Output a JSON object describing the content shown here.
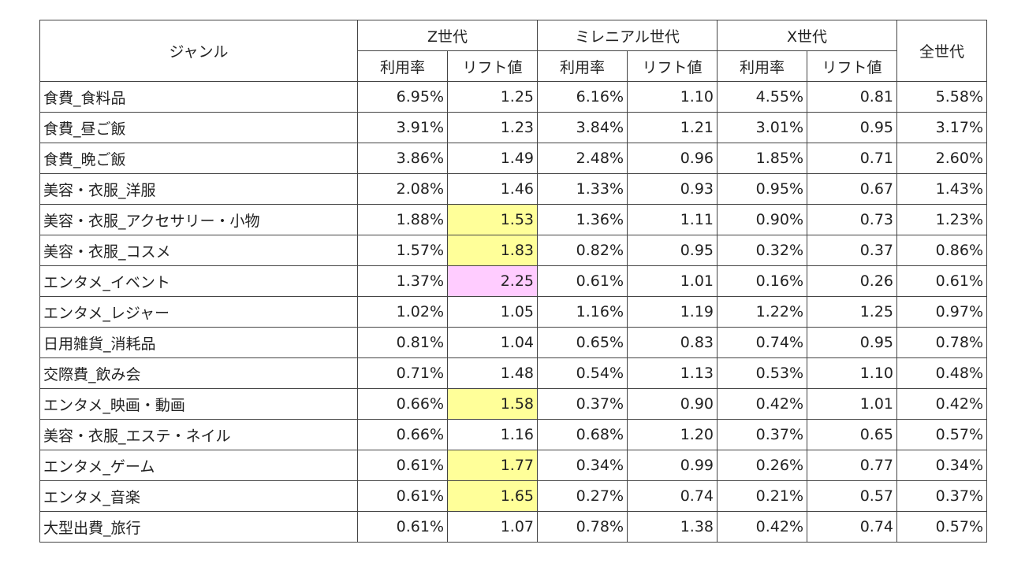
{
  "table": {
    "header": {
      "genre": "ジャンル",
      "groups": [
        {
          "name": "Z世代",
          "columns": [
            "利用率",
            "リフト値"
          ]
        },
        {
          "name": "ミレニアル世代",
          "columns": [
            "利用率",
            "リフト値"
          ]
        },
        {
          "name": "X世代",
          "columns": [
            "利用率",
            "リフト値"
          ]
        }
      ],
      "all": "全世代"
    },
    "rows": [
      [
        "食費_食料品",
        "6.95%",
        "1.25",
        "6.16%",
        "1.10",
        "4.55%",
        "0.81",
        "5.58%"
      ],
      [
        "食費_昼ご飯",
        "3.91%",
        "1.23",
        "3.84%",
        "1.21",
        "3.01%",
        "0.95",
        "3.17%"
      ],
      [
        "食費_晩ご飯",
        "3.86%",
        "1.49",
        "2.48%",
        "0.96",
        "1.85%",
        "0.71",
        "2.60%"
      ],
      [
        "美容・衣服_洋服",
        "2.08%",
        "1.46",
        "1.33%",
        "0.93",
        "0.95%",
        "0.67",
        "1.43%"
      ],
      [
        "美容・衣服_アクセサリー・小物",
        "1.88%",
        {
          "text": "1.53",
          "fill": "#ffff99"
        },
        "1.36%",
        "1.11",
        "0.90%",
        "0.73",
        "1.23%"
      ],
      [
        "美容・衣服_コスメ",
        "1.57%",
        {
          "text": "1.83",
          "fill": "#ffff99"
        },
        "0.82%",
        "0.95",
        "0.32%",
        "0.37",
        "0.86%"
      ],
      [
        "エンタメ_イベント",
        "1.37%",
        {
          "text": "2.25",
          "fill": "#ffccff"
        },
        "0.61%",
        "1.01",
        "0.16%",
        "0.26",
        "0.61%"
      ],
      [
        "エンタメ_レジャー",
        "1.02%",
        "1.05",
        "1.16%",
        "1.19",
        "1.22%",
        "1.25",
        "0.97%"
      ],
      [
        "日用雑貨_消耗品",
        "0.81%",
        "1.04",
        "0.65%",
        "0.83",
        "0.74%",
        "0.95",
        "0.78%"
      ],
      [
        "交際費_飲み会",
        "0.71%",
        "1.48",
        "0.54%",
        "1.13",
        "0.53%",
        "1.10",
        "0.48%"
      ],
      [
        "エンタメ_映画・動画",
        "0.66%",
        {
          "text": "1.58",
          "fill": "#ffff99"
        },
        "0.37%",
        "0.90",
        "0.42%",
        "1.01",
        "0.42%"
      ],
      [
        "美容・衣服_エステ・ネイル",
        "0.66%",
        "1.16",
        "0.68%",
        "1.20",
        "0.37%",
        "0.65",
        "0.57%"
      ],
      [
        "エンタメ_ゲーム",
        "0.61%",
        {
          "text": "1.77",
          "fill": "#ffff99"
        },
        "0.34%",
        "0.99",
        "0.26%",
        "0.77",
        "0.34%"
      ],
      [
        "エンタメ_音楽",
        "0.61%",
        {
          "text": "1.65",
          "fill": "#ffff99"
        },
        "0.27%",
        "0.74",
        "0.21%",
        "0.57",
        "0.37%"
      ],
      [
        "大型出費_旅行",
        "0.61%",
        "1.07",
        "0.78%",
        "1.38",
        "0.42%",
        "0.74",
        "0.57%"
      ]
    ]
  }
}
